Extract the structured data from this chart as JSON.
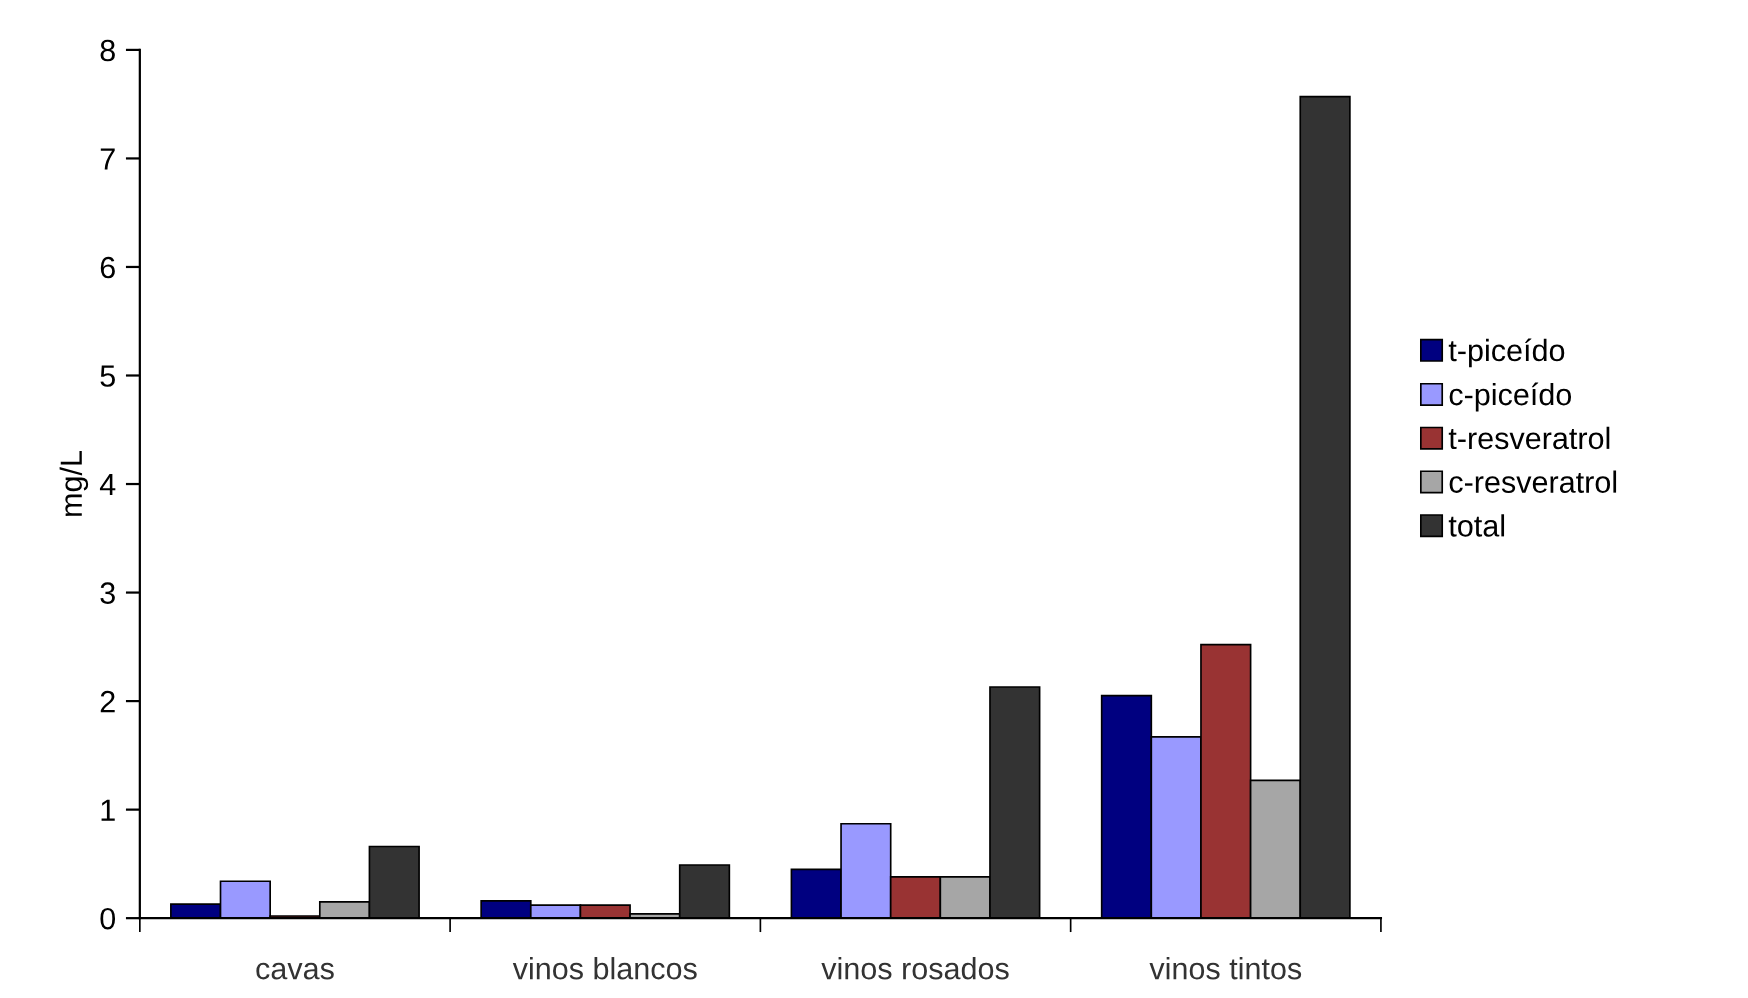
{
  "chart_data": {
    "type": "bar",
    "ylabel": "mg/L",
    "categories": [
      "cavas",
      "vinos blancos",
      "vinos rosados",
      "vinos tintos"
    ],
    "series": [
      {
        "name": "t-piceído",
        "color": "#000080",
        "values": [
          0.13,
          0.16,
          0.45,
          2.05
        ]
      },
      {
        "name": "c-piceído",
        "color": "#9999ff",
        "values": [
          0.34,
          0.12,
          0.87,
          1.67
        ]
      },
      {
        "name": "t-resveratrol",
        "color": "#993333",
        "values": [
          0.02,
          0.12,
          0.38,
          2.52
        ]
      },
      {
        "name": "c-resveratrol",
        "color": "#a6a6a6",
        "values": [
          0.15,
          0.04,
          0.38,
          1.27
        ]
      },
      {
        "name": "total",
        "color": "#333333",
        "values": [
          0.66,
          0.49,
          2.13,
          7.57
        ]
      }
    ],
    "ylim": [
      0,
      8
    ],
    "yticks": [
      0,
      1,
      2,
      3,
      4,
      5,
      6,
      7,
      8
    ],
    "grid": false,
    "legend": "right"
  }
}
